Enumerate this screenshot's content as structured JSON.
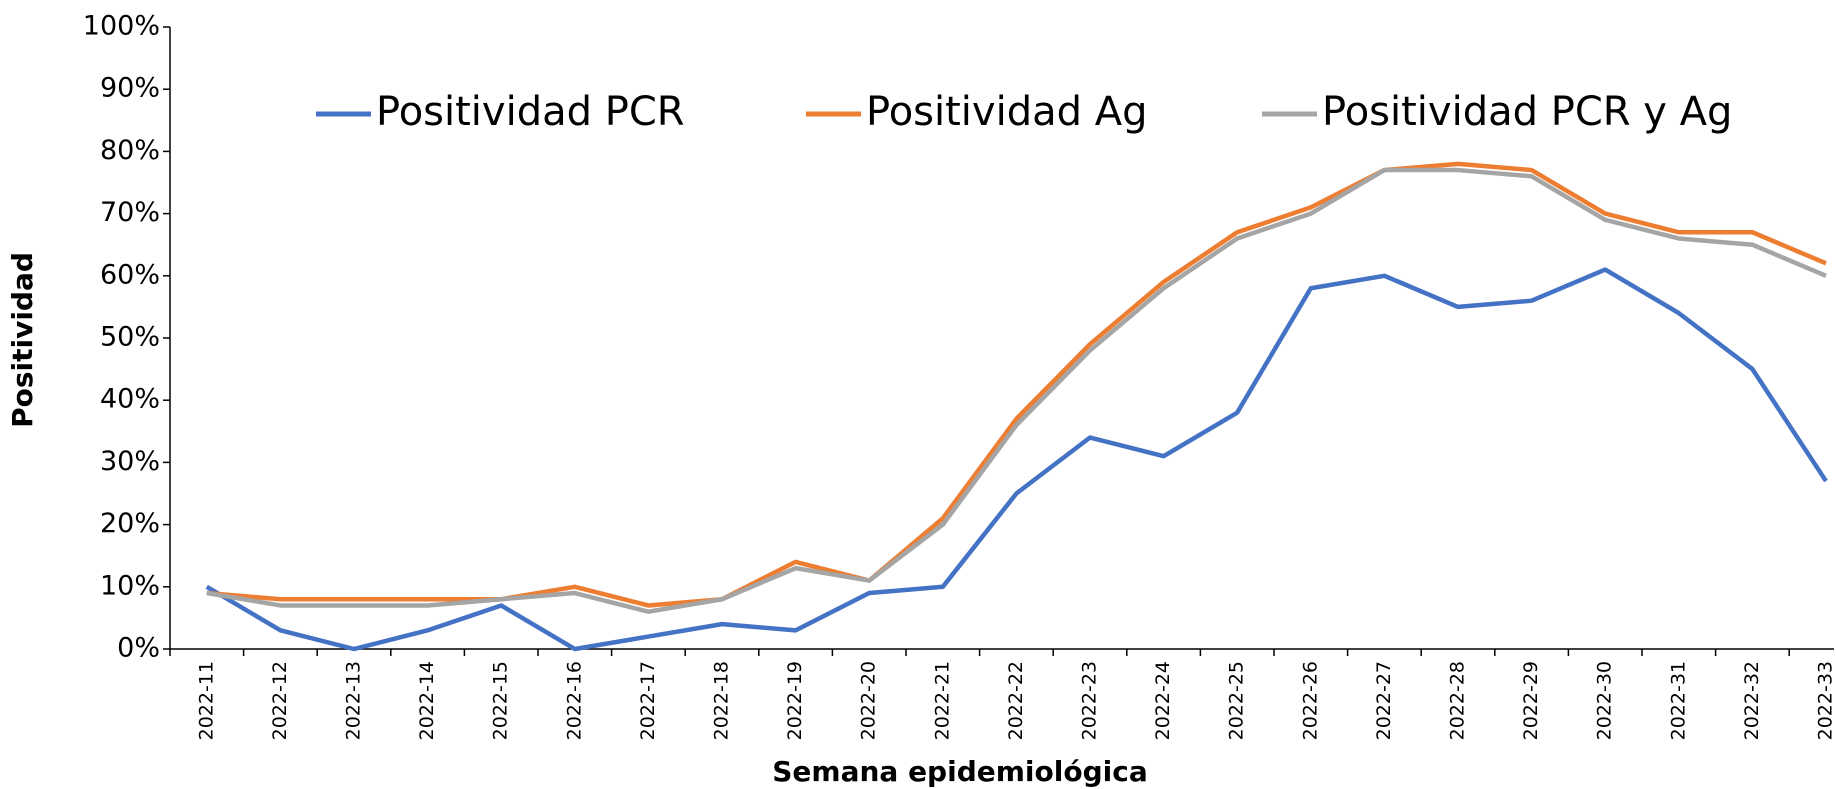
{
  "chart_data": {
    "type": "line",
    "xlabel": "Semana epidemiológica",
    "ylabel": "Positividad",
    "categories": [
      "2022-11",
      "2022-12",
      "2022-13",
      "2022-14",
      "2022-15",
      "2022-16",
      "2022-17",
      "2022-18",
      "2022-19",
      "2022-20",
      "2022-21",
      "2022-22",
      "2022-23",
      "2022-24",
      "2022-25",
      "2022-26",
      "2022-27",
      "2022-28",
      "2022-29",
      "2022-30",
      "2022-31",
      "2022-32",
      "2022-33"
    ],
    "series": [
      {
        "name": "Positividad PCR",
        "color": "#4472c4",
        "values": [
          10,
          3,
          0,
          3,
          7,
          0,
          2,
          4,
          3,
          9,
          10,
          25,
          34,
          31,
          38,
          58,
          60,
          55,
          56,
          61,
          54,
          45,
          27
        ]
      },
      {
        "name": "Positividad Ag",
        "color": "#ed7d31",
        "values": [
          9,
          8,
          8,
          8,
          8,
          10,
          7,
          8,
          14,
          11,
          21,
          37,
          49,
          59,
          67,
          71,
          77,
          78,
          77,
          70,
          67,
          67,
          62
        ]
      },
      {
        "name": "Positividad PCR y Ag",
        "color": "#a5a5a5",
        "values": [
          9,
          7,
          7,
          7,
          8,
          9,
          6,
          8,
          13,
          11,
          20,
          36,
          48,
          58,
          66,
          70,
          77,
          77,
          76,
          69,
          66,
          65,
          60
        ]
      }
    ],
    "ylim": [
      0,
      100
    ],
    "yticks": [
      {
        "value": 0,
        "label": "0%"
      },
      {
        "value": 10,
        "label": "10%"
      },
      {
        "value": 20,
        "label": "20%"
      },
      {
        "value": 30,
        "label": "30%"
      },
      {
        "value": 40,
        "label": "40%"
      },
      {
        "value": 50,
        "label": "50%"
      },
      {
        "value": 60,
        "label": "60%"
      },
      {
        "value": 70,
        "label": "70%"
      },
      {
        "value": 80,
        "label": "80%"
      },
      {
        "value": 90,
        "label": "90%"
      },
      {
        "value": 100,
        "label": "100%"
      }
    ],
    "grid": false,
    "legend": "top"
  }
}
